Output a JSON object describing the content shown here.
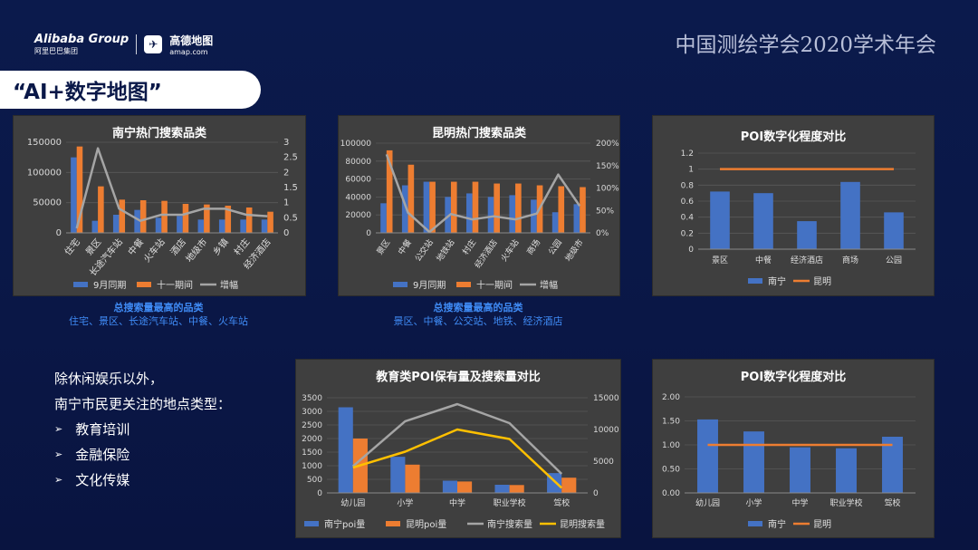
{
  "header": {
    "alibaba": "Alibaba Group",
    "alibaba_cn": "阿里巴巴集团",
    "amap_name": "高德地图",
    "amap_url": "amap.com",
    "conference": "中国测绘学会2020学术年会"
  },
  "banner": {
    "title": "“AI+数字地图”"
  },
  "colors": {
    "blue": "#4472c4",
    "orange": "#ed7d31",
    "gray": "#a5a5a5",
    "yellow": "#ffc000",
    "panel": "#3f3f3f",
    "note": "#3f8bf5"
  },
  "sidebar": {
    "line1": "除休闲娱乐以外，",
    "line2": "南宁市民更关注的地点类型：",
    "bullets": [
      "教育培训",
      "金融保险",
      "文化传媒"
    ],
    "bullet_icon": "arrow-right-icon"
  },
  "notes": {
    "nanning_title": "总搜索量最高的品类",
    "nanning_text": "住宅、景区、长途汽车站、中餐、火车站",
    "kunming_title": "总搜索量最高的品类",
    "kunming_text": "景区、中餐、公交站、地铁、经济酒店"
  },
  "chart_data": [
    {
      "id": "nanning",
      "type": "bar",
      "title": "南宁热门搜索品类",
      "categories": [
        "住宅",
        "景区",
        "长途汽车站",
        "中餐",
        "火车站",
        "酒店",
        "地级市",
        "乡镇",
        "村庄",
        "经济酒店"
      ],
      "series": [
        {
          "name": "9月同期",
          "type": "bar",
          "axis": "left",
          "values": [
            125000,
            20000,
            30000,
            38000,
            25000,
            28000,
            22000,
            22000,
            22000,
            22000
          ]
        },
        {
          "name": "十一期间",
          "type": "bar",
          "axis": "left",
          "values": [
            143000,
            77000,
            55000,
            54000,
            53000,
            48000,
            47000,
            45000,
            42000,
            35000
          ]
        },
        {
          "name": "增幅",
          "type": "line",
          "axis": "right",
          "values": [
            0.15,
            2.8,
            0.8,
            0.4,
            0.6,
            0.6,
            0.8,
            0.8,
            0.6,
            0.55
          ]
        }
      ],
      "ylim": [
        0,
        150000
      ],
      "yticks": [
        "0",
        "50000",
        "100000",
        "150000"
      ],
      "y2lim": [
        0,
        3
      ],
      "y2ticks": [
        "0",
        "0.5",
        "1",
        "1.5",
        "2",
        "2.5",
        "3"
      ],
      "legend": "bottom"
    },
    {
      "id": "kunming",
      "type": "bar",
      "title": "昆明热门搜索品类",
      "categories": [
        "景区",
        "中餐",
        "公交站",
        "地铁站",
        "村庄",
        "经济酒店",
        "火车站",
        "商场",
        "公园",
        "地级市"
      ],
      "series": [
        {
          "name": "9月同期",
          "type": "bar",
          "axis": "left",
          "values": [
            33000,
            53000,
            57000,
            40000,
            44000,
            40000,
            42000,
            37000,
            23000,
            32000
          ]
        },
        {
          "name": "十一期间",
          "type": "bar",
          "axis": "left",
          "values": [
            92000,
            76000,
            57000,
            57000,
            57000,
            55000,
            55000,
            53000,
            52000,
            51000
          ]
        },
        {
          "name": "增幅",
          "type": "line",
          "axis": "right",
          "values": [
            1.75,
            0.45,
            0.02,
            0.42,
            0.3,
            0.37,
            0.3,
            0.43,
            1.3,
            0.6
          ]
        }
      ],
      "ylim": [
        0,
        100000
      ],
      "yticks": [
        "0",
        "20000",
        "40000",
        "60000",
        "80000",
        "100000"
      ],
      "y2lim": [
        0,
        2
      ],
      "y2ticks": [
        "0%",
        "50%",
        "100%",
        "150%",
        "200%"
      ],
      "legend": "bottom"
    },
    {
      "id": "poi1",
      "type": "bar",
      "title": "POI数字化程度对比",
      "categories": [
        "景区",
        "中餐",
        "经济酒店",
        "商场",
        "公园"
      ],
      "series": [
        {
          "name": "南宁",
          "type": "bar",
          "axis": "left",
          "values": [
            0.72,
            0.7,
            0.35,
            0.84,
            0.46
          ]
        },
        {
          "name": "昆明",
          "type": "line",
          "axis": "left",
          "values": [
            1,
            1,
            1,
            1,
            1
          ]
        }
      ],
      "ylim": [
        0,
        1.2
      ],
      "yticks": [
        "0",
        "0.2",
        "0.4",
        "0.6",
        "0.8",
        "1",
        "1.2"
      ],
      "legend": "bottom"
    },
    {
      "id": "edu",
      "type": "bar",
      "title": "教育类POI保有量及搜索量对比",
      "categories": [
        "幼儿园",
        "小学",
        "中学",
        "职业学校",
        "驾校"
      ],
      "series": [
        {
          "name": "南宁poi量",
          "type": "bar",
          "axis": "left",
          "values": [
            3150,
            1330,
            450,
            300,
            730
          ]
        },
        {
          "name": "昆明poi量",
          "type": "bar",
          "axis": "left",
          "values": [
            2000,
            1040,
            420,
            290,
            560
          ]
        },
        {
          "name": "南宁搜索量",
          "type": "line",
          "axis": "right",
          "values": [
            4200,
            11300,
            14000,
            11000,
            3000
          ]
        },
        {
          "name": "昆明搜索量",
          "type": "line",
          "axis": "right",
          "values": [
            4000,
            6500,
            10000,
            8500,
            800
          ]
        }
      ],
      "ylim": [
        0,
        3500
      ],
      "yticks": [
        "0",
        "500",
        "1000",
        "1500",
        "2000",
        "2500",
        "3000",
        "3500"
      ],
      "y2lim": [
        0,
        15000
      ],
      "y2ticks": [
        "0",
        "5000",
        "10000",
        "15000"
      ],
      "legend": "bottom"
    },
    {
      "id": "poi2",
      "type": "bar",
      "title": "POI数字化程度对比",
      "categories": [
        "幼儿园",
        "小学",
        "中学",
        "职业学校",
        "驾校"
      ],
      "series": [
        {
          "name": "南宁",
          "type": "bar",
          "axis": "left",
          "values": [
            1.53,
            1.28,
            0.95,
            0.93,
            1.17
          ]
        },
        {
          "name": "昆明",
          "type": "line",
          "axis": "left",
          "values": [
            1,
            1,
            1,
            1,
            1
          ]
        }
      ],
      "ylim": [
        0,
        2
      ],
      "yticks": [
        "0.00",
        "0.50",
        "1.00",
        "1.50",
        "2.00"
      ],
      "legend": "bottom"
    }
  ]
}
